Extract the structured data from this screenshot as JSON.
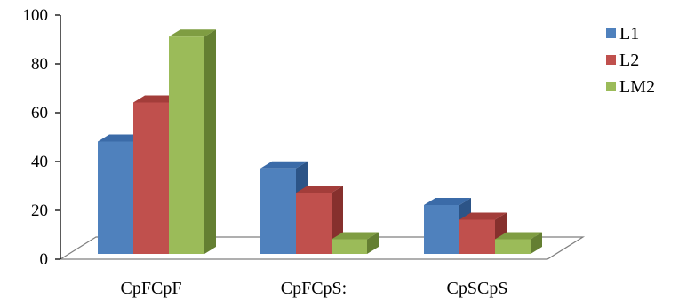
{
  "chart_data": {
    "type": "bar",
    "categories": [
      "CpFCpF",
      "CpFCpS:",
      "CpSCpS"
    ],
    "series": [
      {
        "name": "L1",
        "values": [
          46,
          35,
          20
        ]
      },
      {
        "name": "L2",
        "values": [
          62,
          25,
          14
        ]
      },
      {
        "name": "LM2",
        "values": [
          89,
          6,
          6
        ]
      }
    ],
    "ylim": [
      0,
      100
    ],
    "yticks": [
      0,
      20,
      40,
      60,
      80,
      100
    ],
    "grid": false,
    "legend_position": "right",
    "style": "3d-clustered",
    "colors": {
      "L1": {
        "front": "#4f81bd",
        "top": "#3b6ba8",
        "side": "#2c5487"
      },
      "L2": {
        "front": "#c0504d",
        "top": "#a33d3a",
        "side": "#86302d"
      },
      "LM2": {
        "front": "#9bbb59",
        "top": "#7f9d42",
        "side": "#647f32"
      }
    }
  }
}
